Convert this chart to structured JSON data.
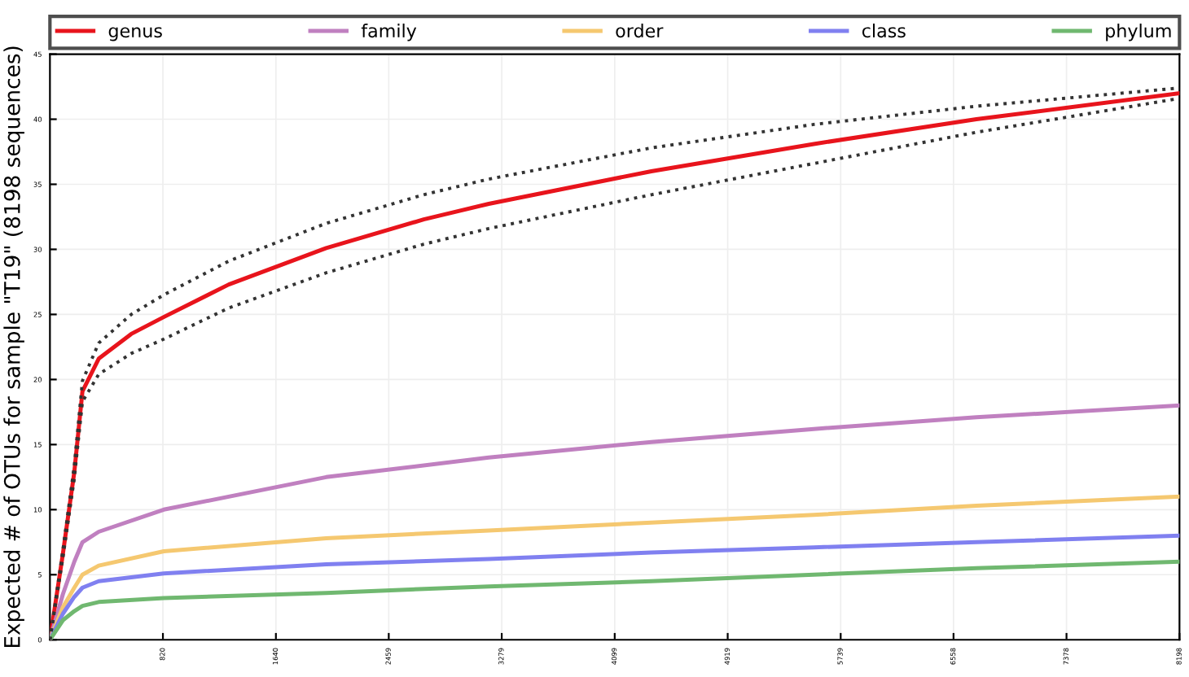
{
  "chart_data": {
    "type": "line",
    "ylabel": "Expected # of OTUs for sample \"T19\" (8198 sequences)",
    "xlim": [
      0,
      8198
    ],
    "ylim": [
      0,
      45
    ],
    "xticks": [
      820,
      1640,
      2459,
      3279,
      4099,
      4919,
      5739,
      6558,
      7378,
      8198
    ],
    "yticks": [
      0,
      5,
      10,
      15,
      20,
      25,
      30,
      35,
      40,
      45
    ],
    "grid": true,
    "legend": "top",
    "line_style": "solid",
    "x": [
      0,
      94,
      177,
      236,
      354,
      826,
      2005,
      3185,
      4365,
      5544,
      6724,
      8198
    ],
    "series": [
      {
        "name": "genus",
        "color": "#e8141c",
        "x": [
          0,
          94,
          177,
          236,
          354,
          590,
          826,
          1298,
          2005,
          2713,
          3185,
          4365,
          5544,
          6724,
          8198
        ],
        "values": [
          0,
          6.6,
          12.9,
          19.1,
          21.6,
          23.5,
          24.8,
          27.3,
          30.1,
          32.3,
          33.5,
          36,
          38.1,
          40,
          42
        ]
      },
      {
        "color": "#333333",
        "line_style": "dotted",
        "x": [
          0,
          94,
          177,
          236,
          354,
          590,
          826,
          1298,
          2005,
          2713,
          3185,
          4365,
          5544,
          6724,
          8198
        ],
        "values": [
          0,
          6.9,
          13.4,
          19.9,
          22.8,
          25,
          26.5,
          29.1,
          32,
          34.2,
          35.4,
          37.8,
          39.6,
          41,
          42.4
        ]
      },
      {
        "color": "#333333",
        "line_style": "dotted",
        "x": [
          0,
          94,
          177,
          236,
          354,
          590,
          826,
          1298,
          2005,
          2713,
          3185,
          4365,
          5544,
          6724,
          8198
        ],
        "values": [
          0,
          6.3,
          12.4,
          18.3,
          20.4,
          22,
          23.1,
          25.5,
          28.2,
          30.4,
          31.6,
          34.2,
          36.6,
          39,
          41.6
        ]
      },
      {
        "name": "family",
        "color": "#c080c0",
        "values": [
          0,
          3.5,
          6,
          7.5,
          8.3,
          10,
          12.5,
          14,
          15.2,
          16.2,
          17.1,
          18
        ]
      },
      {
        "name": "order",
        "color": "#f5c870",
        "values": [
          0,
          2.5,
          4,
          5,
          5.7,
          6.8,
          7.8,
          8.4,
          9,
          9.6,
          10.3,
          11
        ]
      },
      {
        "name": "class",
        "color": "#8080f0",
        "values": [
          0,
          2,
          3.3,
          4,
          4.5,
          5.1,
          5.8,
          6.2,
          6.7,
          7.1,
          7.5,
          8
        ]
      },
      {
        "name": "phylum",
        "color": "#70b870",
        "values": [
          0,
          1.5,
          2.2,
          2.6,
          2.9,
          3.2,
          3.6,
          4.1,
          4.5,
          5,
          5.5,
          6
        ]
      }
    ]
  }
}
